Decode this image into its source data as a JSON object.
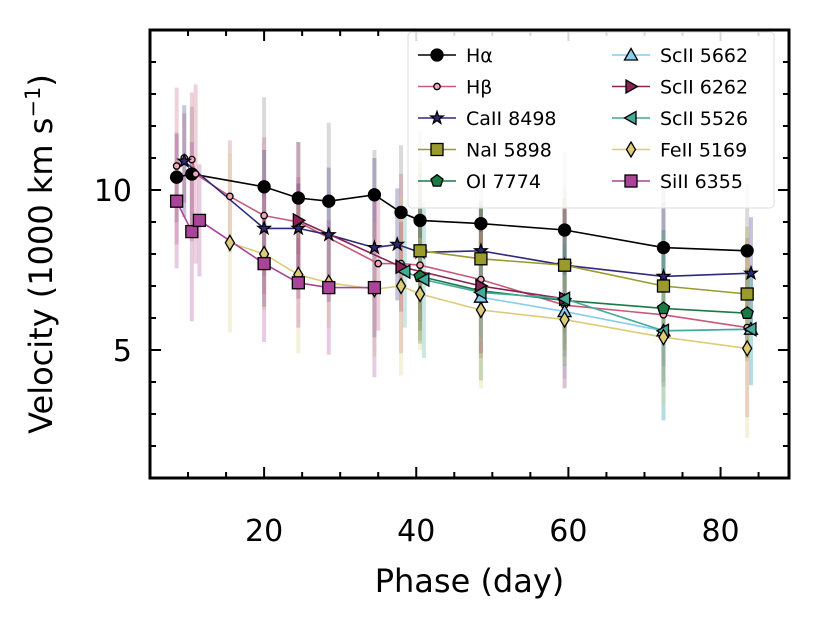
{
  "chart_data": {
    "type": "line",
    "xlabel": "Phase (day)",
    "ylabel": "Velocity (1000 km s^-1)",
    "xlim": [
      5,
      89
    ],
    "ylim": [
      1,
      15
    ],
    "xticks": [
      20,
      40,
      60,
      80
    ],
    "yticks": [
      5,
      10
    ],
    "grid": false,
    "legend_position": "top-right",
    "series": [
      {
        "name": "Hα",
        "label": "Hα",
        "color": "#000000",
        "marker": "circle",
        "x": [
          8.5,
          10.5,
          20,
          24.5,
          28.5,
          34.5,
          38,
          40.5,
          48.5,
          59.5,
          72.5,
          83.5
        ],
        "y": [
          10.4,
          10.5,
          10.1,
          9.75,
          9.65,
          9.85,
          9.3,
          9.05,
          8.95,
          8.75,
          8.2,
          8.1
        ]
      },
      {
        "name": "Hβ",
        "label": "Hβ",
        "color": "#c75a79",
        "marker": "small-circle",
        "x": [
          8.5,
          9.5,
          10.5,
          11,
          15.5,
          20,
          24.5,
          35,
          38,
          40.5,
          48.5,
          59.5,
          72.5,
          83.5
        ],
        "y": [
          10.75,
          11.0,
          10.95,
          10.5,
          9.8,
          9.2,
          9.0,
          7.7,
          7.7,
          7.65,
          7.2,
          6.4,
          6.1,
          5.7
        ]
      },
      {
        "name": "CaII 8498",
        "label": "CaII 8498",
        "color": "#2e2a7b",
        "marker": "star",
        "x": [
          9.5,
          20,
          24.5,
          28.5,
          34.5,
          37.5,
          40.5,
          48.5,
          59.5,
          72.5,
          84
        ],
        "y": [
          10.9,
          8.8,
          8.8,
          8.6,
          8.2,
          8.3,
          8.05,
          8.1,
          7.65,
          7.3,
          7.4
        ]
      },
      {
        "name": "NaI 5898",
        "label": "NaI 5898",
        "color": "#9b9a2d",
        "marker": "square",
        "x": [
          40.5,
          48.5,
          59.5,
          72.5,
          83.5
        ],
        "y": [
          8.1,
          7.85,
          7.65,
          7.0,
          6.75
        ]
      },
      {
        "name": "OI 7774",
        "label": "OI 7774",
        "color": "#197a46",
        "marker": "pentagon",
        "x": [
          40.5,
          48.5,
          59.5,
          72.5,
          83.5
        ],
        "y": [
          7.3,
          6.85,
          6.55,
          6.3,
          6.15
        ]
      },
      {
        "name": "ScII 5662",
        "label": "ScII 5662",
        "color": "#88ccee",
        "marker": "triangle-up",
        "x": [
          48.5,
          59.5,
          72.5,
          84
        ],
        "y": [
          6.65,
          6.2,
          5.6,
          5.65
        ]
      },
      {
        "name": "ScII 6262",
        "label": "ScII 6262",
        "color": "#882255",
        "marker": "triangle-right",
        "x": [
          24.5,
          38,
          48.5,
          59.5
        ],
        "y": [
          9.05,
          7.6,
          7.0,
          6.6
        ]
      },
      {
        "name": "ScII 5526",
        "label": "ScII 5526",
        "color": "#44aa99",
        "marker": "triangle-left",
        "x": [
          38.5,
          41,
          48.5,
          59.5,
          72.5,
          84
        ],
        "y": [
          7.45,
          7.2,
          6.8,
          6.6,
          5.6,
          5.65
        ]
      },
      {
        "name": "FeII 5169",
        "label": "FeII 5169",
        "color": "#ddcc77",
        "marker": "thin-diamond",
        "x": [
          15.5,
          20,
          24.5,
          28.5,
          34.5,
          38,
          40.5,
          48.5,
          59.5,
          72.5,
          83.5
        ],
        "y": [
          8.35,
          8.0,
          7.35,
          7.1,
          6.9,
          7.0,
          6.75,
          6.25,
          5.95,
          5.4,
          5.05
        ]
      },
      {
        "name": "SiII 6355",
        "label": "SiII 6355",
        "color": "#aa4499",
        "marker": "square",
        "x": [
          8.5,
          10.5,
          11.5,
          20,
          24.5,
          28.5,
          34.5
        ],
        "y": [
          9.65,
          8.7,
          9.05,
          7.7,
          7.1,
          6.95,
          6.95
        ]
      }
    ]
  }
}
